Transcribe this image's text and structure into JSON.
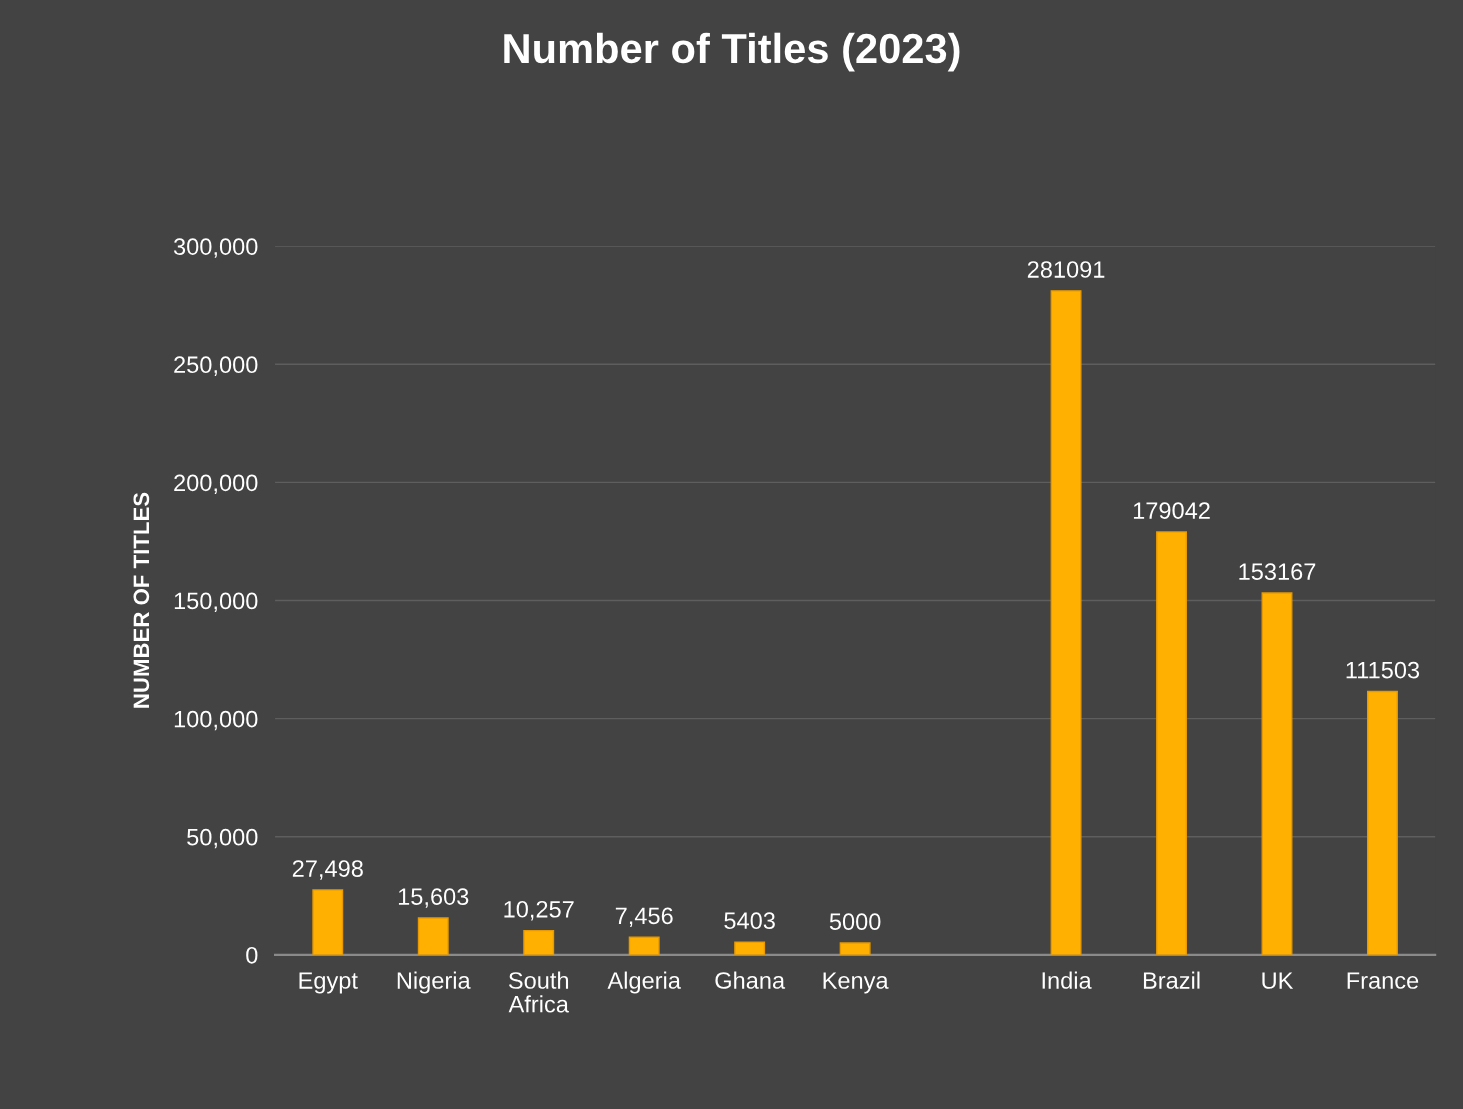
{
  "chart_data": {
    "type": "bar",
    "title": "Number of Titles (2023)",
    "ylabel": "NUMBER OF TITLES",
    "categories": [
      "Egypt",
      "Nigeria",
      "South\nAfrica",
      "Algeria",
      "Ghana",
      "Kenya",
      null,
      "India",
      "Brazil",
      "UK",
      "France"
    ],
    "values": [
      27498,
      15603,
      10257,
      7456,
      5403,
      5000,
      null,
      281091,
      179042,
      153167,
      111503
    ],
    "value_labels": [
      "27,498",
      "15,603",
      "10,257",
      "7,456",
      "5403",
      "5000",
      null,
      "281091",
      "179042",
      "153167",
      "111503"
    ],
    "color": "#ffb000",
    "ylim": [
      0,
      300000
    ],
    "yticks": [
      {
        "value": 0,
        "label": "0"
      },
      {
        "value": 50000,
        "label": "50,000"
      },
      {
        "value": 100000,
        "label": "100,000"
      },
      {
        "value": 150000,
        "label": "150,000"
      },
      {
        "value": 200000,
        "label": "200,000"
      },
      {
        "value": 250000,
        "label": "250,000"
      },
      {
        "value": 300000,
        "label": "300,000"
      }
    ],
    "grid": "y",
    "legend": false
  }
}
